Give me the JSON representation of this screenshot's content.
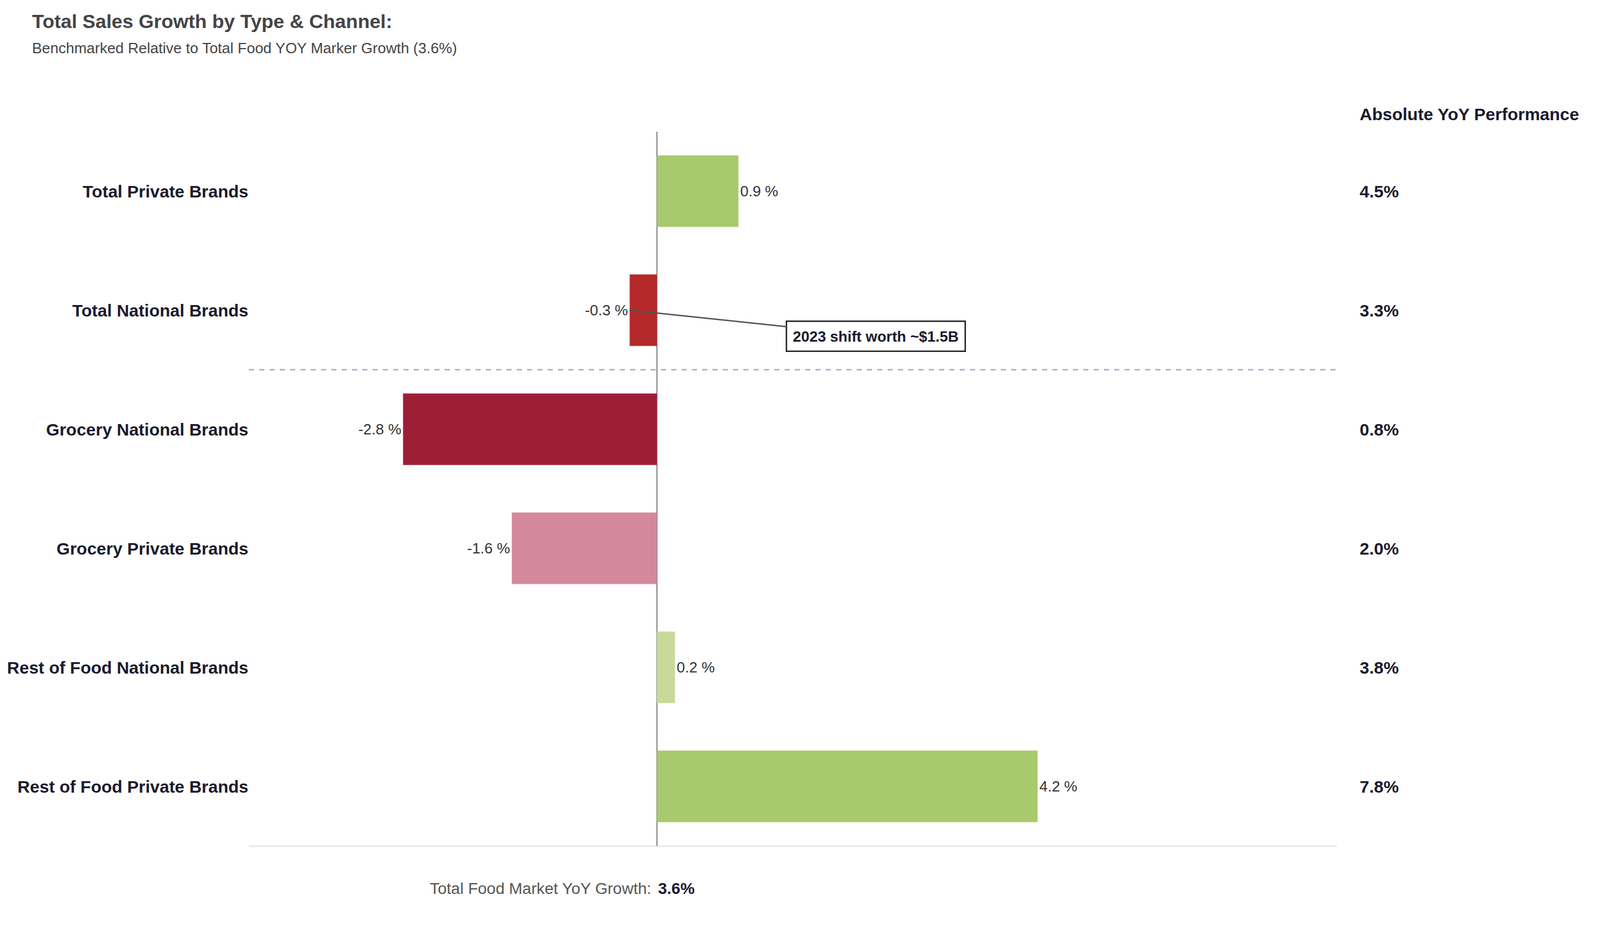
{
  "chart_data": {
    "type": "bar",
    "orientation": "horizontal",
    "title": "Total Sales Growth by Type & Channel:",
    "subtitle": "Benchmarked Relative to Total Food YOY Marker Growth (3.6%)",
    "categories": [
      "Total Private Brands",
      "Total National Brands",
      "Grocery National Brands",
      "Grocery Private Brands",
      "Rest of Food National Brands",
      "Rest of Food Private Brands"
    ],
    "values": [
      0.9,
      -0.3,
      -2.8,
      -1.6,
      0.2,
      4.2
    ],
    "value_labels": [
      "0.9 %",
      "-0.3 %",
      "-2.8 %",
      "-1.6 %",
      "0.2 %",
      "4.2 %"
    ],
    "data_labels": true,
    "colors": [
      "#a8c96e",
      "#b5292a",
      "#9e1f35",
      "#d4899a",
      "#c8d99a",
      "#a8c96e"
    ],
    "xlim": [
      -4.5,
      7.5
    ],
    "tick_labels": "y",
    "grid": false,
    "xlabel": "Total Food Market YoY Growth:",
    "xlabel_value": "3.6%",
    "annotations": [
      {
        "text": "2023 shift worth ~$1.5B",
        "category": "Total National Brands"
      }
    ],
    "absolute_yoy_header": "Absolute YoY Performance",
    "absolute_yoy": [
      "4.5%",
      "3.3%",
      "0.8%",
      "2.0%",
      "3.8%",
      "7.8%"
    ]
  }
}
